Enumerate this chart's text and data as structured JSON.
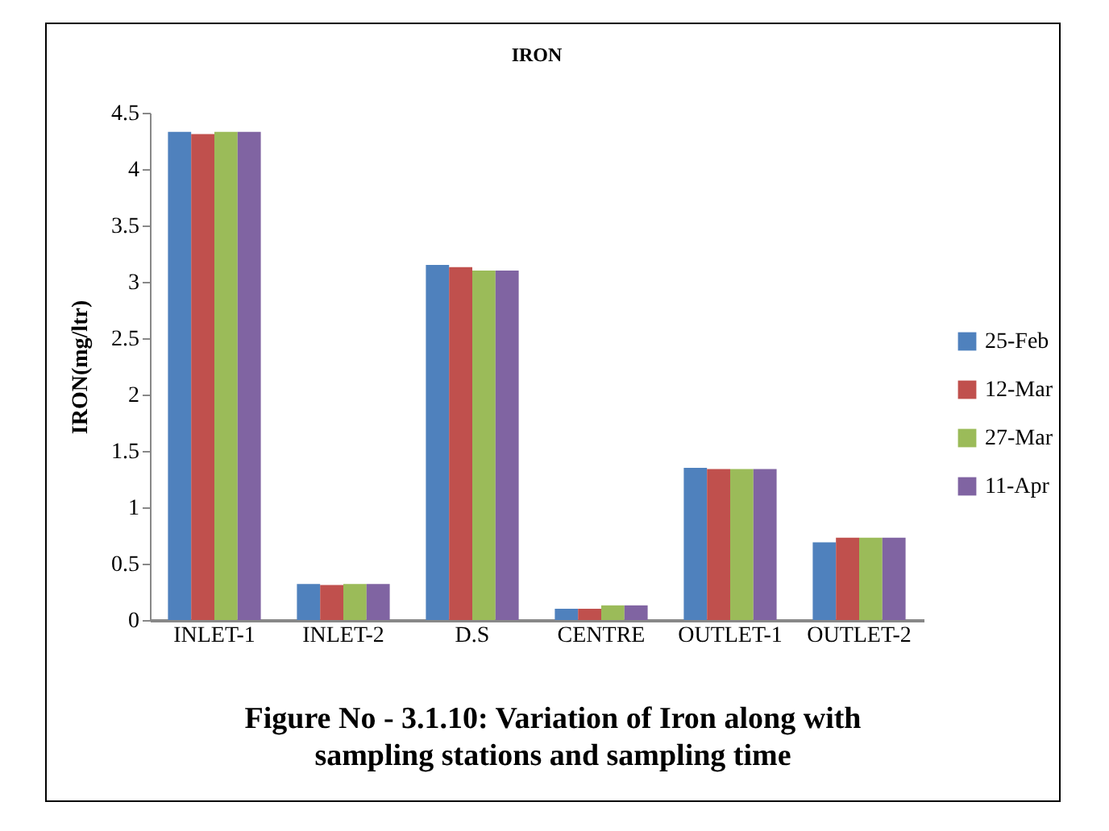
{
  "chart_data": {
    "type": "bar",
    "title": "IRON",
    "ylabel": "IRON(mg/ltr)",
    "categories": [
      "INLET-1",
      "INLET-2",
      "D.S",
      "CENTRE",
      "OUTLET-1",
      "OUTLET-2"
    ],
    "series": [
      {
        "name": "25-Feb",
        "color": "#4f81bd",
        "values": [
          4.33,
          0.32,
          3.15,
          0.1,
          1.35,
          0.69
        ]
      },
      {
        "name": "12-Mar",
        "color": "#c0504d",
        "values": [
          4.31,
          0.31,
          3.13,
          0.1,
          1.34,
          0.73
        ]
      },
      {
        "name": "27-Mar",
        "color": "#9bbb59",
        "values": [
          4.33,
          0.32,
          3.1,
          0.13,
          1.34,
          0.73
        ]
      },
      {
        "name": "11-Apr",
        "color": "#8064a2",
        "values": [
          4.33,
          0.32,
          3.1,
          0.13,
          1.34,
          0.73
        ]
      }
    ],
    "ylim": [
      0,
      4.5
    ],
    "yticks": [
      0,
      0.5,
      1,
      1.5,
      2,
      2.5,
      3,
      3.5,
      4,
      4.5
    ],
    "grid": false,
    "legend": "right",
    "annotations": [
      "Figure No - 3.1.10: Variation of Iron along with sampling stations and sampling time"
    ]
  }
}
